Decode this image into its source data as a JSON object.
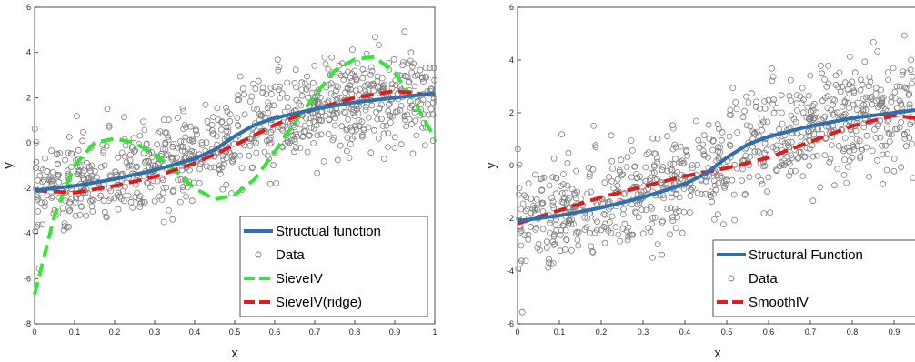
{
  "colors": {
    "structural": "#2f6fad",
    "sieve": "#33e633",
    "ridge": "#e01b1b",
    "data": "#7f7f7f",
    "axis": "#262626"
  },
  "chart_data": [
    {
      "type": "scatter",
      "xlabel": "x",
      "ylabel": "y",
      "xlim": [
        0,
        1
      ],
      "ylim": [
        -8,
        6
      ],
      "xticks": [
        "0",
        "0.1",
        "0.2",
        "0.3",
        "0.4",
        "0.5",
        "0.6",
        "0.7",
        "0.8",
        "0.9",
        "1"
      ],
      "yticks": [
        "-8",
        "-6",
        "-4",
        "-2",
        "0",
        "2",
        "4",
        "6"
      ],
      "legend_position": "bottom-right",
      "series": [
        {
          "name": "Structual function",
          "style": "solid",
          "color": "#2f6fad",
          "x": [
            0,
            0.1,
            0.2,
            0.3,
            0.4,
            0.45,
            0.5,
            0.55,
            0.6,
            0.7,
            0.8,
            0.9,
            1
          ],
          "y": [
            -2.1,
            -1.9,
            -1.6,
            -1.2,
            -0.7,
            -0.3,
            0.3,
            0.8,
            1.1,
            1.5,
            1.8,
            2.0,
            2.2
          ]
        },
        {
          "name": "Data",
          "style": "markers"
        },
        {
          "name": "SieveIV",
          "style": "dashed",
          "color": "#33e633",
          "x": [
            0,
            0.05,
            0.1,
            0.15,
            0.2,
            0.25,
            0.3,
            0.35,
            0.4,
            0.45,
            0.5,
            0.55,
            0.6,
            0.65,
            0.7,
            0.75,
            0.8,
            0.85,
            0.9,
            0.95,
            1
          ],
          "y": [
            -6.7,
            -3.2,
            -1.0,
            0.0,
            0.2,
            0.0,
            -0.5,
            -1.2,
            -2.0,
            -2.5,
            -2.3,
            -1.6,
            -0.4,
            0.9,
            2.1,
            3.2,
            3.7,
            3.8,
            3.1,
            1.8,
            0.2
          ]
        },
        {
          "name": "SieveIV(ridge)",
          "style": "dashed",
          "color": "#e01b1b",
          "x": [
            0,
            0.1,
            0.2,
            0.3,
            0.4,
            0.5,
            0.6,
            0.7,
            0.8,
            0.9,
            1
          ],
          "y": [
            -2.1,
            -2.2,
            -1.9,
            -1.5,
            -0.9,
            -0.1,
            0.8,
            1.5,
            2.0,
            2.3,
            2.1
          ]
        }
      ]
    },
    {
      "type": "scatter",
      "xlabel": "x",
      "ylabel": "y",
      "xlim": [
        0,
        1
      ],
      "ylim": [
        -6,
        6
      ],
      "xticks": [
        "0",
        "0.1",
        "0.2",
        "0.3",
        "0.4",
        "0.5",
        "0.6",
        "0.7",
        "0.8",
        "0.9"
      ],
      "yticks": [
        "-6",
        "-4",
        "-2",
        "0",
        "2",
        "4",
        "6"
      ],
      "legend_position": "bottom-right",
      "series": [
        {
          "name": "Structural Function",
          "style": "solid",
          "color": "#2f6fad",
          "x": [
            0,
            0.1,
            0.2,
            0.3,
            0.4,
            0.45,
            0.5,
            0.55,
            0.6,
            0.7,
            0.8,
            0.9,
            1
          ],
          "y": [
            -2.1,
            -1.9,
            -1.6,
            -1.2,
            -0.7,
            -0.3,
            0.3,
            0.8,
            1.1,
            1.5,
            1.8,
            2.0,
            2.2
          ]
        },
        {
          "name": "Data",
          "style": "markers"
        },
        {
          "name": "SmoothIV",
          "style": "dashed",
          "color": "#e01b1b",
          "x": [
            0,
            0.1,
            0.2,
            0.3,
            0.4,
            0.5,
            0.6,
            0.7,
            0.8,
            0.9,
            1
          ],
          "y": [
            -2.2,
            -1.7,
            -1.2,
            -0.8,
            -0.4,
            -0.1,
            0.3,
            0.9,
            1.5,
            1.9,
            1.7
          ]
        }
      ]
    }
  ]
}
